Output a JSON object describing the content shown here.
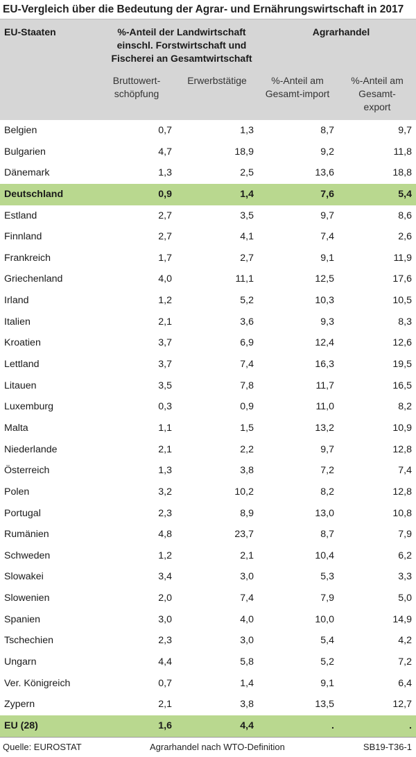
{
  "title": "EU-Vergleich über die Bedeutung der Agrar- und Ernährungswirtschaft in 2017",
  "header": {
    "country": "EU-Staaten",
    "share_group": [
      "%-Anteil der Landwirtschaft",
      "einschl. Forstwirtschaft und",
      "Fischerei an Gesamtwirtschaft"
    ],
    "trade_group": "Agrarhandel",
    "col1": [
      "Bruttowert-",
      "schöpfung"
    ],
    "col2": [
      "Erwerbstätige"
    ],
    "col3": [
      "%-Anteil am",
      "Gesamt-import"
    ],
    "col4": [
      "%-Anteil am",
      "Gesamt-",
      "export"
    ]
  },
  "rows": [
    {
      "name": "Belgien",
      "bws": "0,7",
      "erw": "1,3",
      "imp": "8,7",
      "exp": "9,7",
      "highlight": false
    },
    {
      "name": "Bulgarien",
      "bws": "4,7",
      "erw": "18,9",
      "imp": "9,2",
      "exp": "11,8",
      "highlight": false
    },
    {
      "name": "Dänemark",
      "bws": "1,3",
      "erw": "2,5",
      "imp": "13,6",
      "exp": "18,8",
      "highlight": false
    },
    {
      "name": "Deutschland",
      "bws": "0,9",
      "erw": "1,4",
      "imp": "7,6",
      "exp": "5,4",
      "highlight": true
    },
    {
      "name": "Estland",
      "bws": "2,7",
      "erw": "3,5",
      "imp": "9,7",
      "exp": "8,6",
      "highlight": false
    },
    {
      "name": "Finnland",
      "bws": "2,7",
      "erw": "4,1",
      "imp": "7,4",
      "exp": "2,6",
      "highlight": false
    },
    {
      "name": "Frankreich",
      "bws": "1,7",
      "erw": "2,7",
      "imp": "9,1",
      "exp": "11,9",
      "highlight": false
    },
    {
      "name": "Griechenland",
      "bws": "4,0",
      "erw": "11,1",
      "imp": "12,5",
      "exp": "17,6",
      "highlight": false
    },
    {
      "name": "Irland",
      "bws": "1,2",
      "erw": "5,2",
      "imp": "10,3",
      "exp": "10,5",
      "highlight": false
    },
    {
      "name": "Italien",
      "bws": "2,1",
      "erw": "3,6",
      "imp": "9,3",
      "exp": "8,3",
      "highlight": false
    },
    {
      "name": "Kroatien",
      "bws": "3,7",
      "erw": "6,9",
      "imp": "12,4",
      "exp": "12,6",
      "highlight": false
    },
    {
      "name": "Lettland",
      "bws": "3,7",
      "erw": "7,4",
      "imp": "16,3",
      "exp": "19,5",
      "highlight": false
    },
    {
      "name": "Litauen",
      "bws": "3,5",
      "erw": "7,8",
      "imp": "11,7",
      "exp": "16,5",
      "highlight": false
    },
    {
      "name": "Luxemburg",
      "bws": "0,3",
      "erw": "0,9",
      "imp": "11,0",
      "exp": "8,2",
      "highlight": false
    },
    {
      "name": "Malta",
      "bws": "1,1",
      "erw": "1,5",
      "imp": "13,2",
      "exp": "10,9",
      "highlight": false
    },
    {
      "name": "Niederlande",
      "bws": "2,1",
      "erw": "2,2",
      "imp": "9,7",
      "exp": "12,8",
      "highlight": false
    },
    {
      "name": "Österreich",
      "bws": "1,3",
      "erw": "3,8",
      "imp": "7,2",
      "exp": "7,4",
      "highlight": false
    },
    {
      "name": "Polen",
      "bws": "3,2",
      "erw": "10,2",
      "imp": "8,2",
      "exp": "12,8",
      "highlight": false
    },
    {
      "name": "Portugal",
      "bws": "2,3",
      "erw": "8,9",
      "imp": "13,0",
      "exp": "10,8",
      "highlight": false
    },
    {
      "name": "Rumänien",
      "bws": "4,8",
      "erw": "23,7",
      "imp": "8,7",
      "exp": "7,9",
      "highlight": false
    },
    {
      "name": "Schweden",
      "bws": "1,2",
      "erw": "2,1",
      "imp": "10,4",
      "exp": "6,2",
      "highlight": false
    },
    {
      "name": "Slowakei",
      "bws": "3,4",
      "erw": "3,0",
      "imp": "5,3",
      "exp": "3,3",
      "highlight": false
    },
    {
      "name": "Slowenien",
      "bws": "2,0",
      "erw": "7,4",
      "imp": "7,9",
      "exp": "5,0",
      "highlight": false
    },
    {
      "name": "Spanien",
      "bws": "3,0",
      "erw": "4,0",
      "imp": "10,0",
      "exp": "14,9",
      "highlight": false
    },
    {
      "name": "Tschechien",
      "bws": "2,3",
      "erw": "3,0",
      "imp": "5,4",
      "exp": "4,2",
      "highlight": false
    },
    {
      "name": "Ungarn",
      "bws": "4,4",
      "erw": "5,8",
      "imp": "5,2",
      "exp": "7,2",
      "highlight": false
    },
    {
      "name": "Ver. Königreich",
      "bws": "0,7",
      "erw": "1,4",
      "imp": "9,1",
      "exp": "6,4",
      "highlight": false
    },
    {
      "name": "Zypern",
      "bws": "2,1",
      "erw": "3,8",
      "imp": "13,5",
      "exp": "12,7",
      "highlight": false
    },
    {
      "name": "EU (28)",
      "bws": "1,6",
      "erw": "4,4",
      "imp": ".",
      "exp": ".",
      "highlight": true
    }
  ],
  "footer": {
    "source": "Quelle: EUROSTAT",
    "note": "Agrarhandel nach WTO-Definition",
    "code": "SB19-T36-1"
  },
  "colors": {
    "header_bg": "#d6d6d6",
    "highlight_bg": "#b9d88f"
  }
}
